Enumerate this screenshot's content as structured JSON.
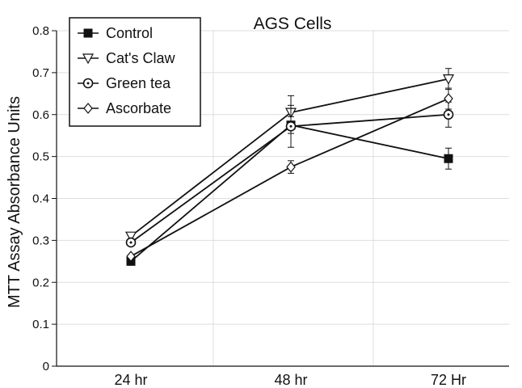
{
  "chart_data": {
    "type": "line",
    "title": "AGS Cells",
    "ylabel": "MTT Assay  Absorbance Units",
    "xlabel": "",
    "categories": [
      "24 hr",
      "48 hr",
      "72 Hr"
    ],
    "ylim": [
      0,
      0.8
    ],
    "yticks": [
      "0",
      "0.1",
      "0.2",
      "0.3",
      "0.4",
      "0.5",
      "0.6",
      "0.7",
      "0.8"
    ],
    "grid": true,
    "legend_position": "top-left",
    "series": [
      {
        "name": "Control",
        "marker": "filled-square",
        "values": [
          0.25,
          0.575,
          0.495
        ],
        "errors": [
          0.005,
          0.02,
          0.025
        ]
      },
      {
        "name": "Cat's Claw",
        "marker": "open-triangle-down",
        "values": [
          0.31,
          0.605,
          0.685
        ],
        "errors": [
          0.005,
          0.04,
          0.025
        ]
      },
      {
        "name": "Green tea",
        "marker": "circle-dot",
        "values": [
          0.295,
          0.572,
          0.6
        ],
        "errors": [
          0.005,
          0.05,
          0.03
        ]
      },
      {
        "name": "Ascorbate",
        "marker": "open-diamond",
        "values": [
          0.262,
          0.475,
          0.638
        ],
        "errors": [
          0.005,
          0.015,
          0.025
        ]
      }
    ]
  }
}
